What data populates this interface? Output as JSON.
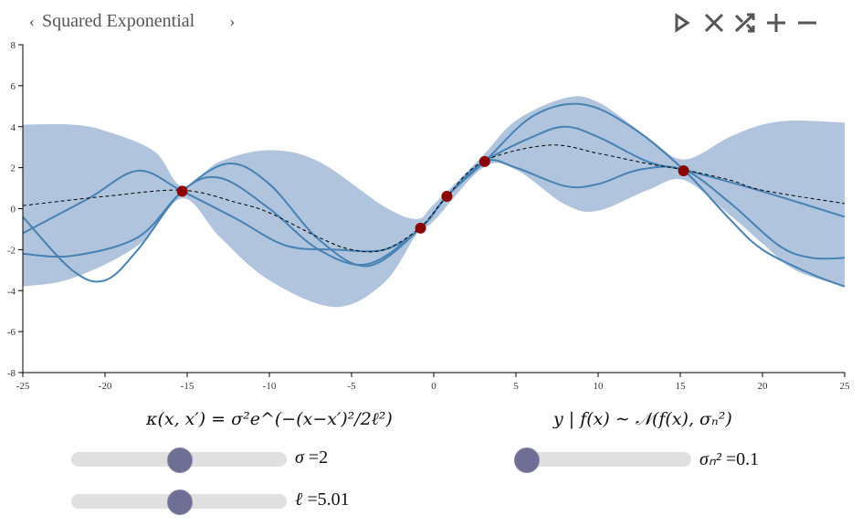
{
  "header": {
    "title": "Squared Exponential",
    "prev_icon": "chevron-left-icon",
    "next_icon": "chevron-right-icon"
  },
  "toolbar": {
    "icons": [
      "play-icon",
      "clear-icon",
      "shuffle-icon",
      "plus-icon",
      "minus-icon"
    ]
  },
  "colors": {
    "band": "#b0c4de",
    "sample": "#4682b4",
    "mean": "#000000",
    "point": "#8b0000",
    "knob": "#6f6f95",
    "track": "#e0e0e0"
  },
  "formulas": {
    "kernel": "κ(x, x′) = σ²e^(−(x−x′)²/2ℓ²)",
    "likelihood": "y | f(x) ∼ 𝒩(f(x), σₙ²)"
  },
  "sliders": {
    "sigma": {
      "label": "σ",
      "value": "2",
      "fraction": 0.5
    },
    "length": {
      "label": "ℓ",
      "value": "5.01",
      "fraction": 0.5
    },
    "noise": {
      "label": "σₙ²",
      "value": "0.1",
      "fraction": 0.0
    }
  },
  "chart_data": {
    "type": "line",
    "xlim": [
      -25,
      25
    ],
    "ylim": [
      -8,
      8
    ],
    "xticks": [
      "-25",
      "-20",
      "-15",
      "-10",
      "-5",
      "0",
      "5",
      "10",
      "15",
      "20",
      "25"
    ],
    "yticks": [
      "-8",
      "-6",
      "-4",
      "-2",
      "0",
      "2",
      "4",
      "6",
      "8"
    ],
    "observations": [
      [
        -15.3,
        0.85
      ],
      [
        -0.8,
        -0.95
      ],
      [
        0.8,
        0.6
      ],
      [
        3.1,
        2.3
      ],
      [
        15.2,
        1.85
      ]
    ],
    "mean": [
      [
        -25,
        0.15
      ],
      [
        -20,
        0.6
      ],
      [
        -15.3,
        0.9
      ],
      [
        -12,
        0.3
      ],
      [
        -10,
        -0.2
      ],
      [
        -7,
        -1.4
      ],
      [
        -5,
        -2.0
      ],
      [
        -3,
        -2.0
      ],
      [
        -0.8,
        -0.9
      ],
      [
        0.8,
        0.6
      ],
      [
        3,
        2.3
      ],
      [
        7,
        3.1
      ],
      [
        10,
        2.7
      ],
      [
        13,
        2.2
      ],
      [
        15.2,
        1.9
      ],
      [
        18,
        1.4
      ],
      [
        20,
        0.9
      ],
      [
        25,
        0.25
      ]
    ],
    "upper": [
      [
        -25,
        4.1
      ],
      [
        -22,
        4.1
      ],
      [
        -20,
        3.8
      ],
      [
        -17,
        2.8
      ],
      [
        -15.3,
        1.1
      ],
      [
        -13,
        2.3
      ],
      [
        -10,
        2.85
      ],
      [
        -7,
        2.3
      ],
      [
        -3,
        0.1
      ],
      [
        -1,
        -0.5
      ],
      [
        0,
        0.2
      ],
      [
        3,
        2.6
      ],
      [
        5,
        4.3
      ],
      [
        8,
        5.4
      ],
      [
        10,
        5.2
      ],
      [
        13,
        3.5
      ],
      [
        15.2,
        2.4
      ],
      [
        18,
        3.5
      ],
      [
        20,
        4.1
      ],
      [
        22,
        4.3
      ],
      [
        25,
        4.2
      ]
    ],
    "lower": [
      [
        -25,
        -3.8
      ],
      [
        -22,
        -3.4
      ],
      [
        -18,
        -1.8
      ],
      [
        -15.3,
        0.5
      ],
      [
        -13,
        -1.4
      ],
      [
        -10,
        -3.5
      ],
      [
        -6,
        -4.8
      ],
      [
        -3,
        -3.6
      ],
      [
        -1,
        -1.2
      ],
      [
        0,
        -0.6
      ],
      [
        3,
        2.0
      ],
      [
        5,
        1.9
      ],
      [
        8,
        0.2
      ],
      [
        10,
        -0.1
      ],
      [
        13,
        0.9
      ],
      [
        15.2,
        1.4
      ],
      [
        18,
        -0.3
      ],
      [
        20,
        -1.7
      ],
      [
        22,
        -3.0
      ],
      [
        25,
        -3.8
      ]
    ],
    "samples": [
      [
        [
          -25,
          -0.4
        ],
        [
          -22,
          -3.0
        ],
        [
          -20,
          -3.5
        ],
        [
          -18,
          -2.0
        ],
        [
          -15.3,
          0.85
        ],
        [
          -13,
          1.5
        ],
        [
          -10,
          0
        ],
        [
          -7,
          -2.0
        ],
        [
          -4,
          -2.7
        ],
        [
          -0.8,
          -0.95
        ],
        [
          0.8,
          0.6
        ],
        [
          3.1,
          2.3
        ],
        [
          6,
          4.5
        ],
        [
          9,
          5.1
        ],
        [
          12,
          4.0
        ],
        [
          15.2,
          1.9
        ],
        [
          18,
          -0.5
        ],
        [
          20,
          -2.0
        ],
        [
          23,
          -3.2
        ],
        [
          25,
          -3.8
        ]
      ],
      [
        [
          -25,
          -1.2
        ],
        [
          -21,
          0.5
        ],
        [
          -18,
          1.85
        ],
        [
          -15.3,
          0.85
        ],
        [
          -12,
          -0.5
        ],
        [
          -9,
          -1.8
        ],
        [
          -6,
          -2.0
        ],
        [
          -3,
          -2.0
        ],
        [
          -0.8,
          -0.95
        ],
        [
          0.8,
          0.6
        ],
        [
          3.1,
          2.3
        ],
        [
          6,
          3.5
        ],
        [
          8,
          4.0
        ],
        [
          10,
          3.5
        ],
        [
          13,
          2.3
        ],
        [
          15.2,
          1.9
        ],
        [
          18,
          1.3
        ],
        [
          21,
          0.6
        ],
        [
          25,
          -0.4
        ]
      ],
      [
        [
          -25,
          -2.2
        ],
        [
          -22,
          -2.3
        ],
        [
          -18,
          -1.4
        ],
        [
          -15.3,
          0.85
        ],
        [
          -12.5,
          2.2
        ],
        [
          -10,
          1.2
        ],
        [
          -7,
          -1.5
        ],
        [
          -4,
          -2.8
        ],
        [
          -0.8,
          -0.95
        ],
        [
          0.8,
          0.6
        ],
        [
          3.1,
          2.3
        ],
        [
          5,
          2.0
        ],
        [
          8,
          1.1
        ],
        [
          10,
          1.2
        ],
        [
          12.5,
          1.9
        ],
        [
          15.2,
          1.9
        ],
        [
          18,
          0.3
        ],
        [
          21,
          -1.8
        ],
        [
          23,
          -2.4
        ],
        [
          25,
          -2.4
        ]
      ]
    ]
  }
}
